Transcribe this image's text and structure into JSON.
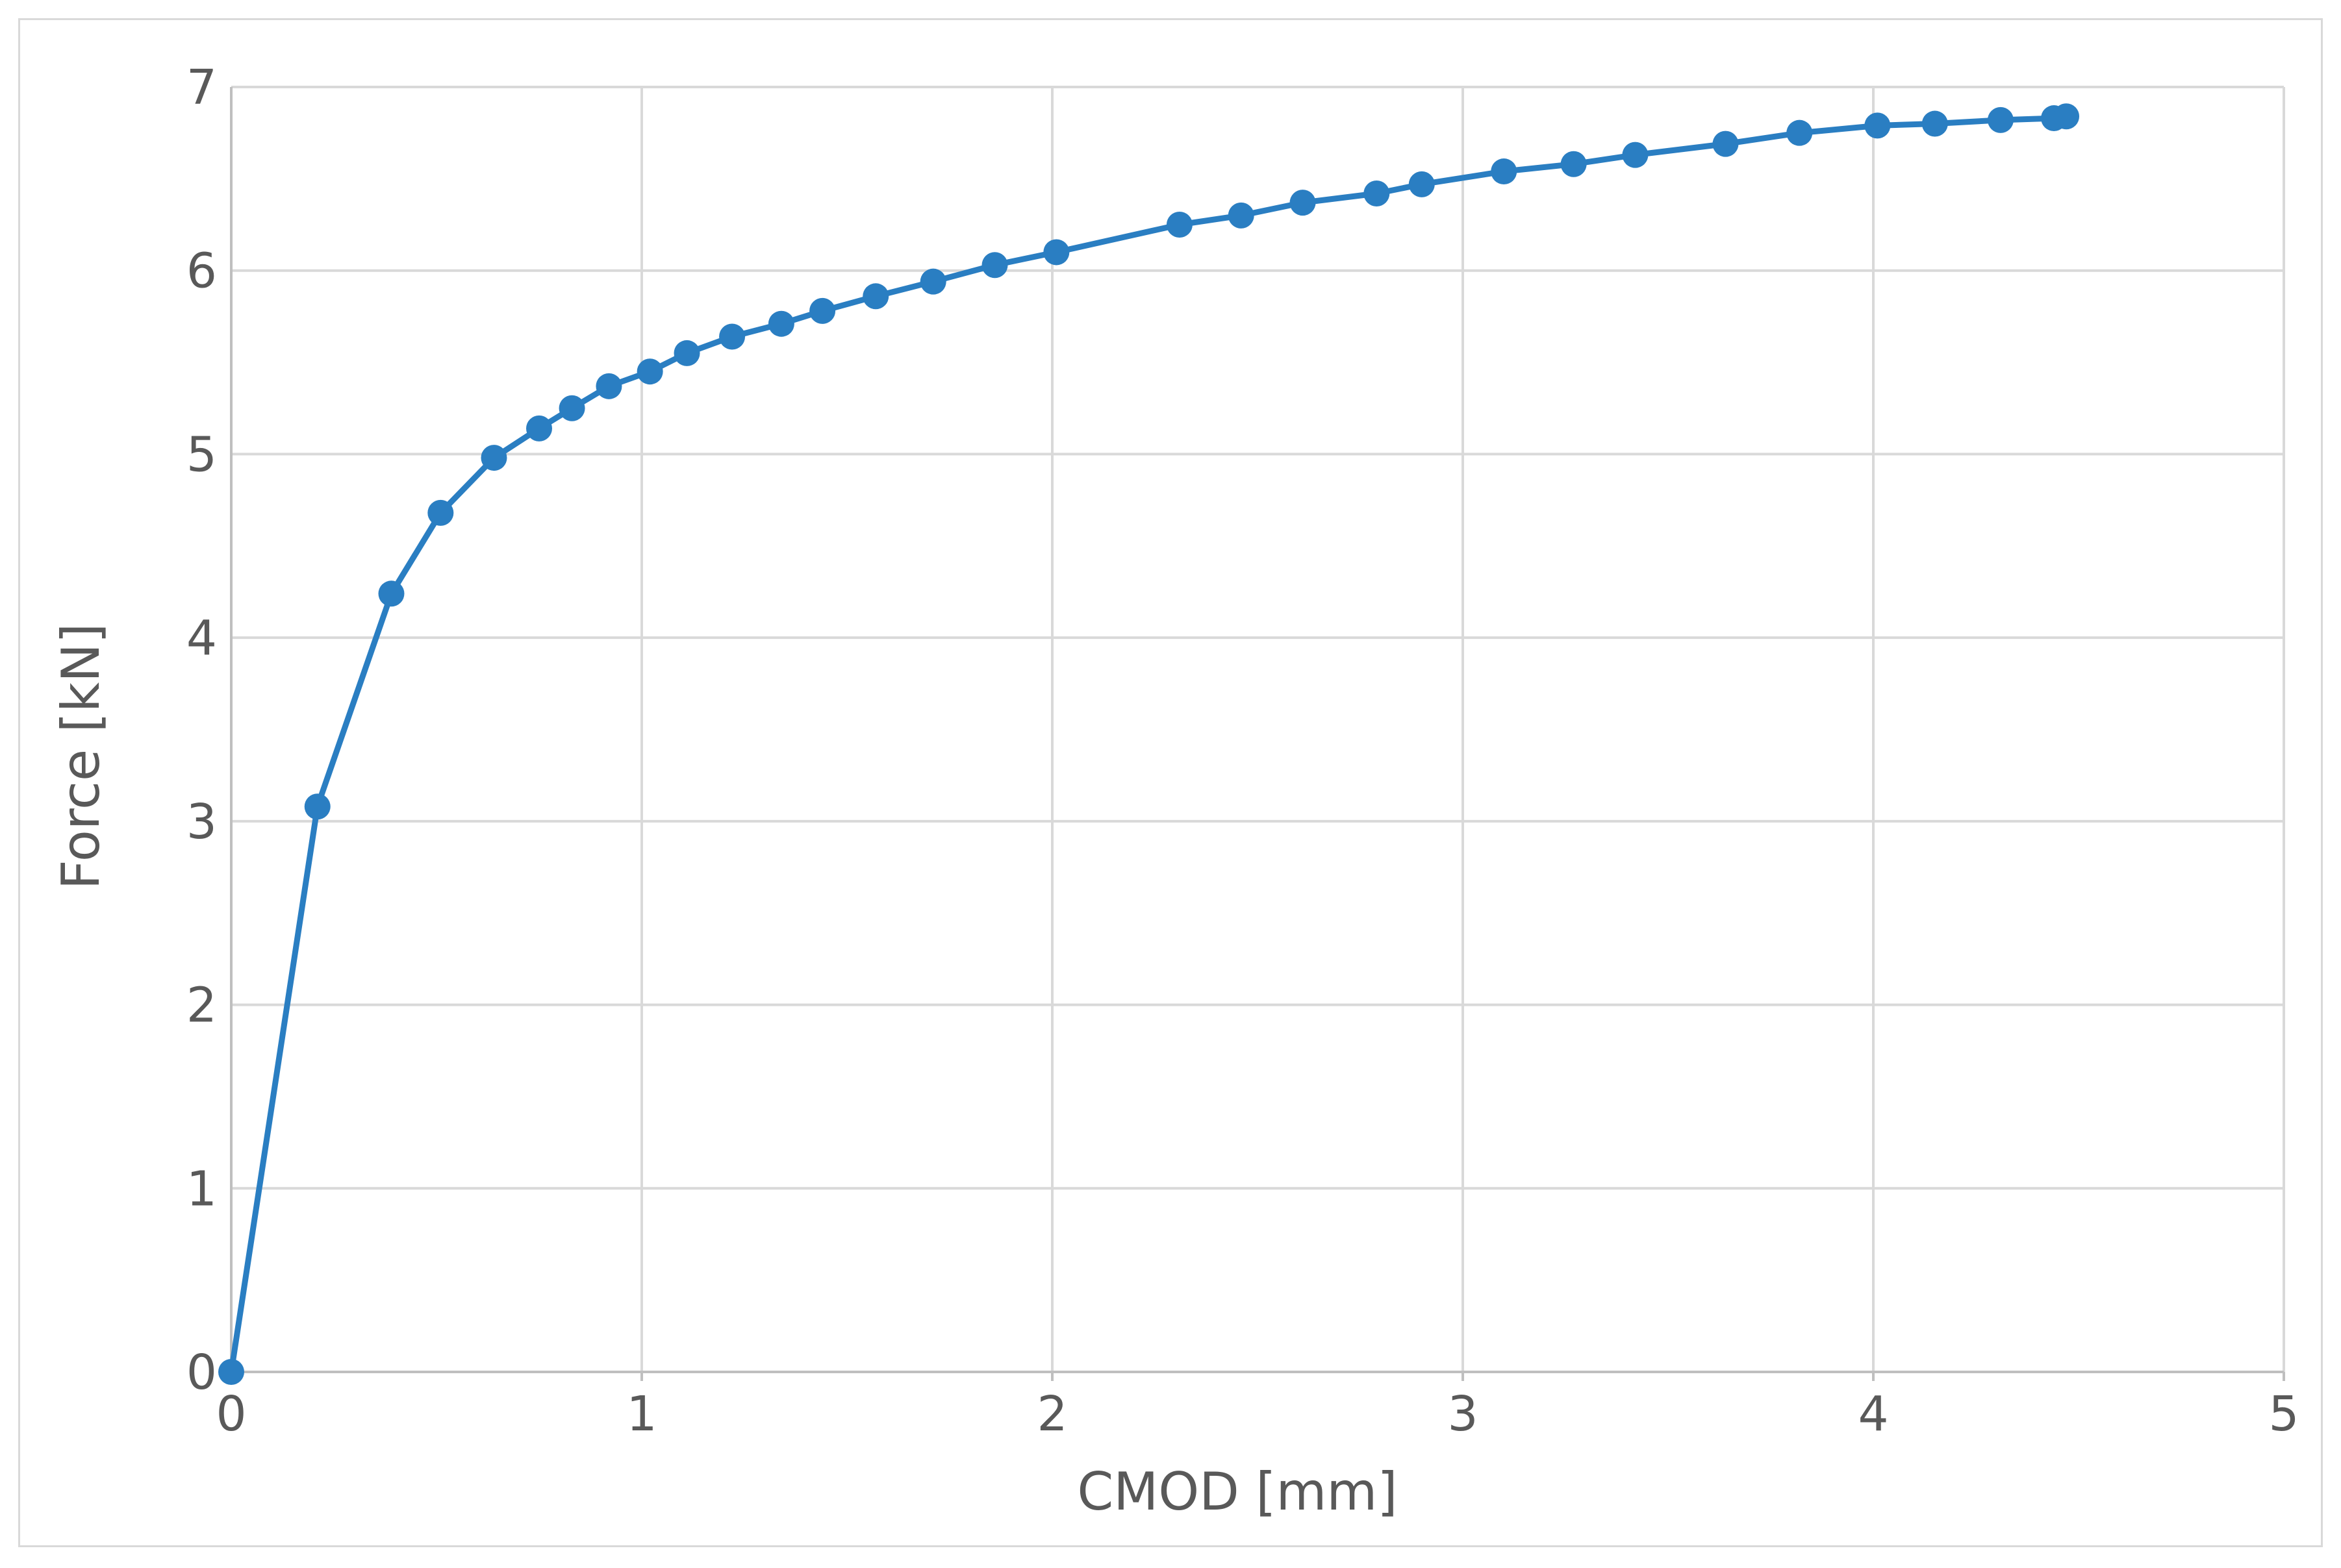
{
  "chart_data": {
    "type": "line",
    "title": "",
    "xlabel": "CMOD [mm]",
    "ylabel": "Force [kN]",
    "xlim": [
      0,
      5
    ],
    "ylim": [
      0,
      7
    ],
    "x_ticks": [
      "0",
      "1",
      "2",
      "3",
      "4",
      "5"
    ],
    "y_ticks": [
      "0",
      "1",
      "2",
      "3",
      "4",
      "5",
      "6",
      "7"
    ],
    "grid": true,
    "legend": "none",
    "series": [
      {
        "color": "#2a7ec2",
        "marker": "circle",
        "x": [
          0,
          0.21,
          0.39,
          0.51,
          0.64,
          0.75,
          0.83,
          0.92,
          1.02,
          1.11,
          1.22,
          1.34,
          1.44,
          1.57,
          1.71,
          1.86,
          2.01,
          2.31,
          2.46,
          2.61,
          2.79,
          2.9,
          3.1,
          3.27,
          3.42,
          3.64,
          3.82,
          4.01,
          4.15,
          4.31,
          4.44,
          4.47
        ],
        "y": [
          0,
          3.08,
          4.24,
          4.68,
          4.98,
          5.14,
          5.25,
          5.37,
          5.45,
          5.55,
          5.64,
          5.71,
          5.78,
          5.86,
          5.94,
          6.03,
          6.1,
          6.25,
          6.3,
          6.37,
          6.42,
          6.47,
          6.54,
          6.58,
          6.63,
          6.69,
          6.75,
          6.79,
          6.8,
          6.82,
          6.83,
          6.84
        ]
      }
    ]
  }
}
